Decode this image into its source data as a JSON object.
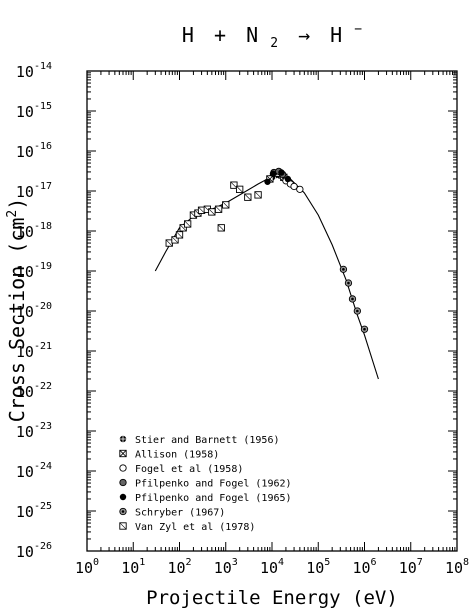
{
  "chart_data": {
    "type": "scatter",
    "title": "H + N₂ → H⁻",
    "title_parts": {
      "a": "H",
      "b": "+",
      "c": "N",
      "sub": "2",
      "arrow": "→",
      "d": "H",
      "sup": "−"
    },
    "xlabel": "Projectile Energy (eV)",
    "ylabel_base": "Cross Section (cm",
    "ylabel_sup": "2",
    "ylabel_close": ")",
    "x_scale": "log",
    "y_scale": "log",
    "xlim": [
      1,
      100000000
    ],
    "ylim": [
      1e-26,
      1e-14
    ],
    "x_ticks": [
      {
        "base": "10",
        "exp": "0",
        "value": 1
      },
      {
        "base": "10",
        "exp": "1",
        "value": 10
      },
      {
        "base": "10",
        "exp": "2",
        "value": 100
      },
      {
        "base": "10",
        "exp": "3",
        "value": 1000
      },
      {
        "base": "10",
        "exp": "4",
        "value": 10000
      },
      {
        "base": "10",
        "exp": "5",
        "value": 100000
      },
      {
        "base": "10",
        "exp": "6",
        "value": 1000000
      },
      {
        "base": "10",
        "exp": "7",
        "value": 10000000
      },
      {
        "base": "10",
        "exp": "8",
        "value": 100000000
      }
    ],
    "y_ticks": [
      {
        "base": "10",
        "exp": "-14",
        "value": 1e-14
      },
      {
        "base": "10",
        "exp": "-15",
        "value": 1e-15
      },
      {
        "base": "10",
        "exp": "-16",
        "value": 1e-16
      },
      {
        "base": "10",
        "exp": "-17",
        "value": 1e-17
      },
      {
        "base": "10",
        "exp": "-18",
        "value": 1e-18
      },
      {
        "base": "10",
        "exp": "-19",
        "value": 1e-19
      },
      {
        "base": "10",
        "exp": "-20",
        "value": 1e-20
      },
      {
        "base": "10",
        "exp": "-21",
        "value": 1e-21
      },
      {
        "base": "10",
        "exp": "-22",
        "value": 1e-22
      },
      {
        "base": "10",
        "exp": "-23",
        "value": 1e-23
      },
      {
        "base": "10",
        "exp": "-24",
        "value": 1e-24
      },
      {
        "base": "10",
        "exp": "-25",
        "value": 1e-25
      },
      {
        "base": "10",
        "exp": "-26",
        "value": 1e-26
      }
    ],
    "grid": false,
    "legend_position": "bottom-left",
    "series": [
      {
        "name": "Stier and Barnett (1956)",
        "marker": "cross-circle",
        "points": [
          {
            "x": 10000,
            "y": 2.2e-17
          },
          {
            "x": 12000,
            "y": 2.5e-17
          },
          {
            "x": 15000,
            "y": 2.4e-17
          }
        ]
      },
      {
        "name": "Allison (1958)",
        "marker": "boxed-x",
        "points": [
          {
            "x": 9000,
            "y": 2e-17
          },
          {
            "x": 13000,
            "y": 2.8e-17
          },
          {
            "x": 18000,
            "y": 2.2e-17
          }
        ]
      },
      {
        "name": "Fogel et al (1958)",
        "marker": "open-circle",
        "points": [
          {
            "x": 20000,
            "y": 1.8e-17
          },
          {
            "x": 25000,
            "y": 1.5e-17
          },
          {
            "x": 30000,
            "y": 1.3e-17
          },
          {
            "x": 40000,
            "y": 1.1e-17
          }
        ]
      },
      {
        "name": "Pfilpenko and Fogel (1962)",
        "marker": "hatched-circle",
        "points": [
          {
            "x": 11000,
            "y": 2.9e-17
          },
          {
            "x": 14000,
            "y": 3.1e-17
          },
          {
            "x": 17000,
            "y": 2.6e-17
          }
        ]
      },
      {
        "name": "Pfilpenko and Fogel (1965)",
        "marker": "filled-circle",
        "points": [
          {
            "x": 8000,
            "y": 1.7e-17
          },
          {
            "x": 10500,
            "y": 2.7e-17
          },
          {
            "x": 16000,
            "y": 2.9e-17
          },
          {
            "x": 22000,
            "y": 2e-17
          }
        ]
      },
      {
        "name": "Schryber (1967)",
        "marker": "double-circle",
        "points": [
          {
            "x": 350000,
            "y": 1.1e-19
          },
          {
            "x": 450000,
            "y": 5e-20
          },
          {
            "x": 550000,
            "y": 2e-20
          },
          {
            "x": 700000,
            "y": 1e-20
          },
          {
            "x": 1000000,
            "y": 3.5e-21
          }
        ]
      },
      {
        "name": "Van Zyl et al (1978)",
        "marker": "open-square",
        "points": [
          {
            "x": 60,
            "y": 5e-19
          },
          {
            "x": 80,
            "y": 6e-19
          },
          {
            "x": 100,
            "y": 8e-19
          },
          {
            "x": 120,
            "y": 1.2e-18
          },
          {
            "x": 150,
            "y": 1.5e-18
          },
          {
            "x": 200,
            "y": 2.5e-18
          },
          {
            "x": 250,
            "y": 2.8e-18
          },
          {
            "x": 300,
            "y": 3.3e-18
          },
          {
            "x": 400,
            "y": 3.5e-18
          },
          {
            "x": 500,
            "y": 3e-18
          },
          {
            "x": 700,
            "y": 3.5e-18
          },
          {
            "x": 800,
            "y": 1.2e-18
          },
          {
            "x": 1000,
            "y": 4.5e-18
          },
          {
            "x": 1500,
            "y": 1.4e-17
          },
          {
            "x": 2000,
            "y": 1.1e-17
          },
          {
            "x": 3000,
            "y": 7e-18
          },
          {
            "x": 5000,
            "y": 8e-18
          }
        ]
      }
    ],
    "fit_curve": {
      "points": [
        {
          "x": 30,
          "y": 1e-19
        },
        {
          "x": 50,
          "y": 3e-19
        },
        {
          "x": 100,
          "y": 1.2e-18
        },
        {
          "x": 200,
          "y": 2.3e-18
        },
        {
          "x": 500,
          "y": 3.5e-18
        },
        {
          "x": 1000,
          "y": 5e-18
        },
        {
          "x": 2000,
          "y": 8e-18
        },
        {
          "x": 5000,
          "y": 1.5e-17
        },
        {
          "x": 10000,
          "y": 2.3e-17
        },
        {
          "x": 15000,
          "y": 2.5e-17
        },
        {
          "x": 25000,
          "y": 2e-17
        },
        {
          "x": 50000,
          "y": 9e-18
        },
        {
          "x": 100000,
          "y": 2.5e-18
        },
        {
          "x": 200000,
          "y": 4.5e-19
        },
        {
          "x": 400000,
          "y": 6e-20
        },
        {
          "x": 700000,
          "y": 8e-21
        },
        {
          "x": 1000000,
          "y": 2.5e-21
        },
        {
          "x": 2000000,
          "y": 2e-22
        }
      ]
    }
  }
}
